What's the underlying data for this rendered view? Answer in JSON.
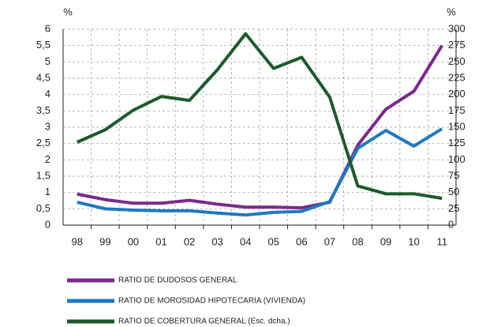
{
  "chart_data": {
    "type": "line",
    "ylabel": "%",
    "y2label": "%",
    "categories": [
      "98",
      "99",
      "00",
      "01",
      "02",
      "03",
      "04",
      "05",
      "06",
      "07",
      "08",
      "09",
      "10",
      "11"
    ],
    "series": [
      {
        "name": "RATIO DE DUDOSOS GENERAL",
        "color": "#7b2a8c",
        "values": [
          0.95,
          0.78,
          0.67,
          0.67,
          0.76,
          0.64,
          0.55,
          0.55,
          0.53,
          0.7,
          2.45,
          3.55,
          4.1,
          5.5
        ]
      },
      {
        "name": "RATIO DE MOROSIDAD HIPOTECARIA (VIVIENDA)",
        "color": "#1f78c1",
        "values": [
          0.7,
          0.5,
          0.46,
          0.44,
          0.44,
          0.37,
          0.31,
          0.39,
          0.42,
          0.72,
          2.35,
          2.9,
          2.42,
          2.95
        ]
      },
      {
        "name": "RATIO DE COBERTURA GENERAL (Esc. dcha.)",
        "color": "#1e5a2b",
        "axis": "y2",
        "values": [
          127,
          146,
          176,
          197,
          191,
          238,
          293,
          240,
          257,
          196,
          60,
          48,
          48,
          41
        ]
      }
    ],
    "ylim": [
      0,
      6
    ],
    "yticks": [
      0,
      {
        "value": 0.5,
        "label": "0,5"
      },
      1,
      {
        "value": 1.5,
        "label": "1,5"
      },
      2,
      {
        "value": 2.5,
        "label": "2,5"
      },
      3,
      {
        "value": 3.5,
        "label": "3,5"
      },
      4,
      {
        "value": 4.5,
        "label": "4,5"
      },
      5,
      {
        "value": 5.5,
        "label": "5,5"
      },
      6
    ],
    "y2lim": [
      0,
      300
    ],
    "y2ticks": [
      0,
      25,
      50,
      75,
      100,
      125,
      150,
      175,
      200,
      225,
      250,
      275,
      300
    ],
    "grid": true
  }
}
